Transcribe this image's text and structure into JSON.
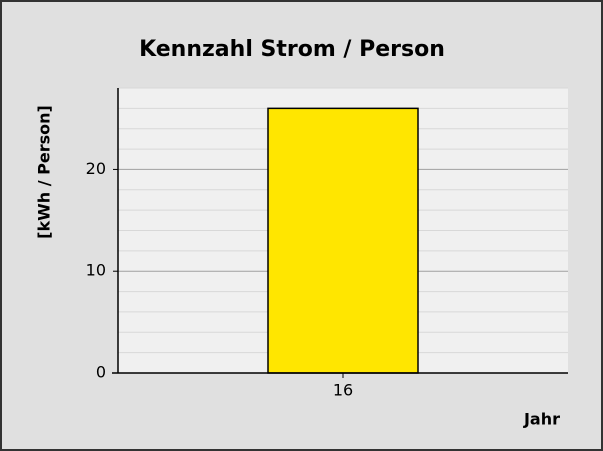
{
  "chart_data": {
    "type": "bar",
    "title": "Kennzahl Strom / Person",
    "ylabel": "[kWh / Person]",
    "xlabel": "Jahr",
    "categories": [
      "16"
    ],
    "values": [
      26
    ],
    "color": "#ffe600",
    "ylim": [
      0,
      28
    ],
    "yticks": [
      0,
      10,
      20
    ],
    "minor_yticks": [
      2,
      4,
      6,
      8,
      12,
      14,
      16,
      18,
      22,
      24,
      26,
      28
    ],
    "grid": true
  }
}
